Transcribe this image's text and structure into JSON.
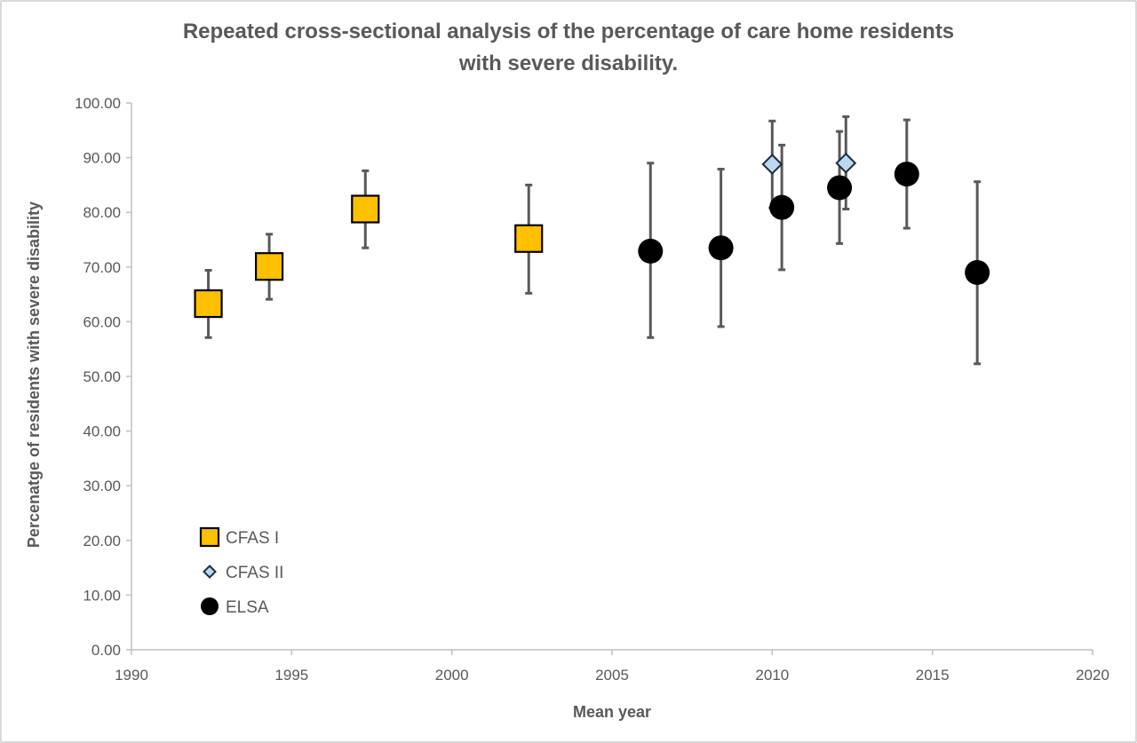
{
  "chart_data": {
    "type": "scatter",
    "title_line1": "Repeated cross-sectional analysis of the percentage of care home residents",
    "title_line2": "with severe disability.",
    "xlabel": "Mean year",
    "ylabel": "Percenatge of residents with severe disability",
    "xlim": [
      1990,
      2020
    ],
    "ylim": [
      0,
      100
    ],
    "x_ticks": [
      "1990",
      "1995",
      "2000",
      "2005",
      "2010",
      "2015",
      "2020"
    ],
    "y_ticks": [
      "0.00",
      "10.00",
      "20.00",
      "30.00",
      "40.00",
      "50.00",
      "60.00",
      "70.00",
      "80.00",
      "90.00",
      "100.00"
    ],
    "grid": false,
    "legend_position": "bottom-left",
    "series": [
      {
        "name": "CFAS I",
        "marker": "square",
        "color": "#ffc000",
        "points": [
          {
            "x": 1992.4,
            "y": 63.3,
            "low": 57.1,
            "high": 69.4
          },
          {
            "x": 1994.3,
            "y": 70.1,
            "low": 64.1,
            "high": 76.0
          },
          {
            "x": 1997.3,
            "y": 80.6,
            "low": 73.5,
            "high": 87.6
          },
          {
            "x": 2002.4,
            "y": 75.2,
            "low": 65.2,
            "high": 85.0
          }
        ]
      },
      {
        "name": "CFAS II",
        "marker": "diamond",
        "color": "#bdd7ee",
        "points": [
          {
            "x": 2010.0,
            "y": 88.8,
            "low": 80.8,
            "high": 96.7
          },
          {
            "x": 2012.3,
            "y": 89.0,
            "low": 80.6,
            "high": 97.5
          }
        ]
      },
      {
        "name": "ELSA",
        "marker": "circle",
        "color": "#000000",
        "points": [
          {
            "x": 2006.2,
            "y": 72.9,
            "low": 57.1,
            "high": 89.0
          },
          {
            "x": 2008.4,
            "y": 73.5,
            "low": 59.1,
            "high": 87.9
          },
          {
            "x": 2010.3,
            "y": 80.9,
            "low": 69.5,
            "high": 92.3
          },
          {
            "x": 2012.1,
            "y": 84.5,
            "low": 74.3,
            "high": 94.8
          },
          {
            "x": 2014.2,
            "y": 87.0,
            "low": 77.1,
            "high": 96.9
          },
          {
            "x": 2016.4,
            "y": 69.0,
            "low": 52.3,
            "high": 85.6
          }
        ]
      }
    ]
  }
}
